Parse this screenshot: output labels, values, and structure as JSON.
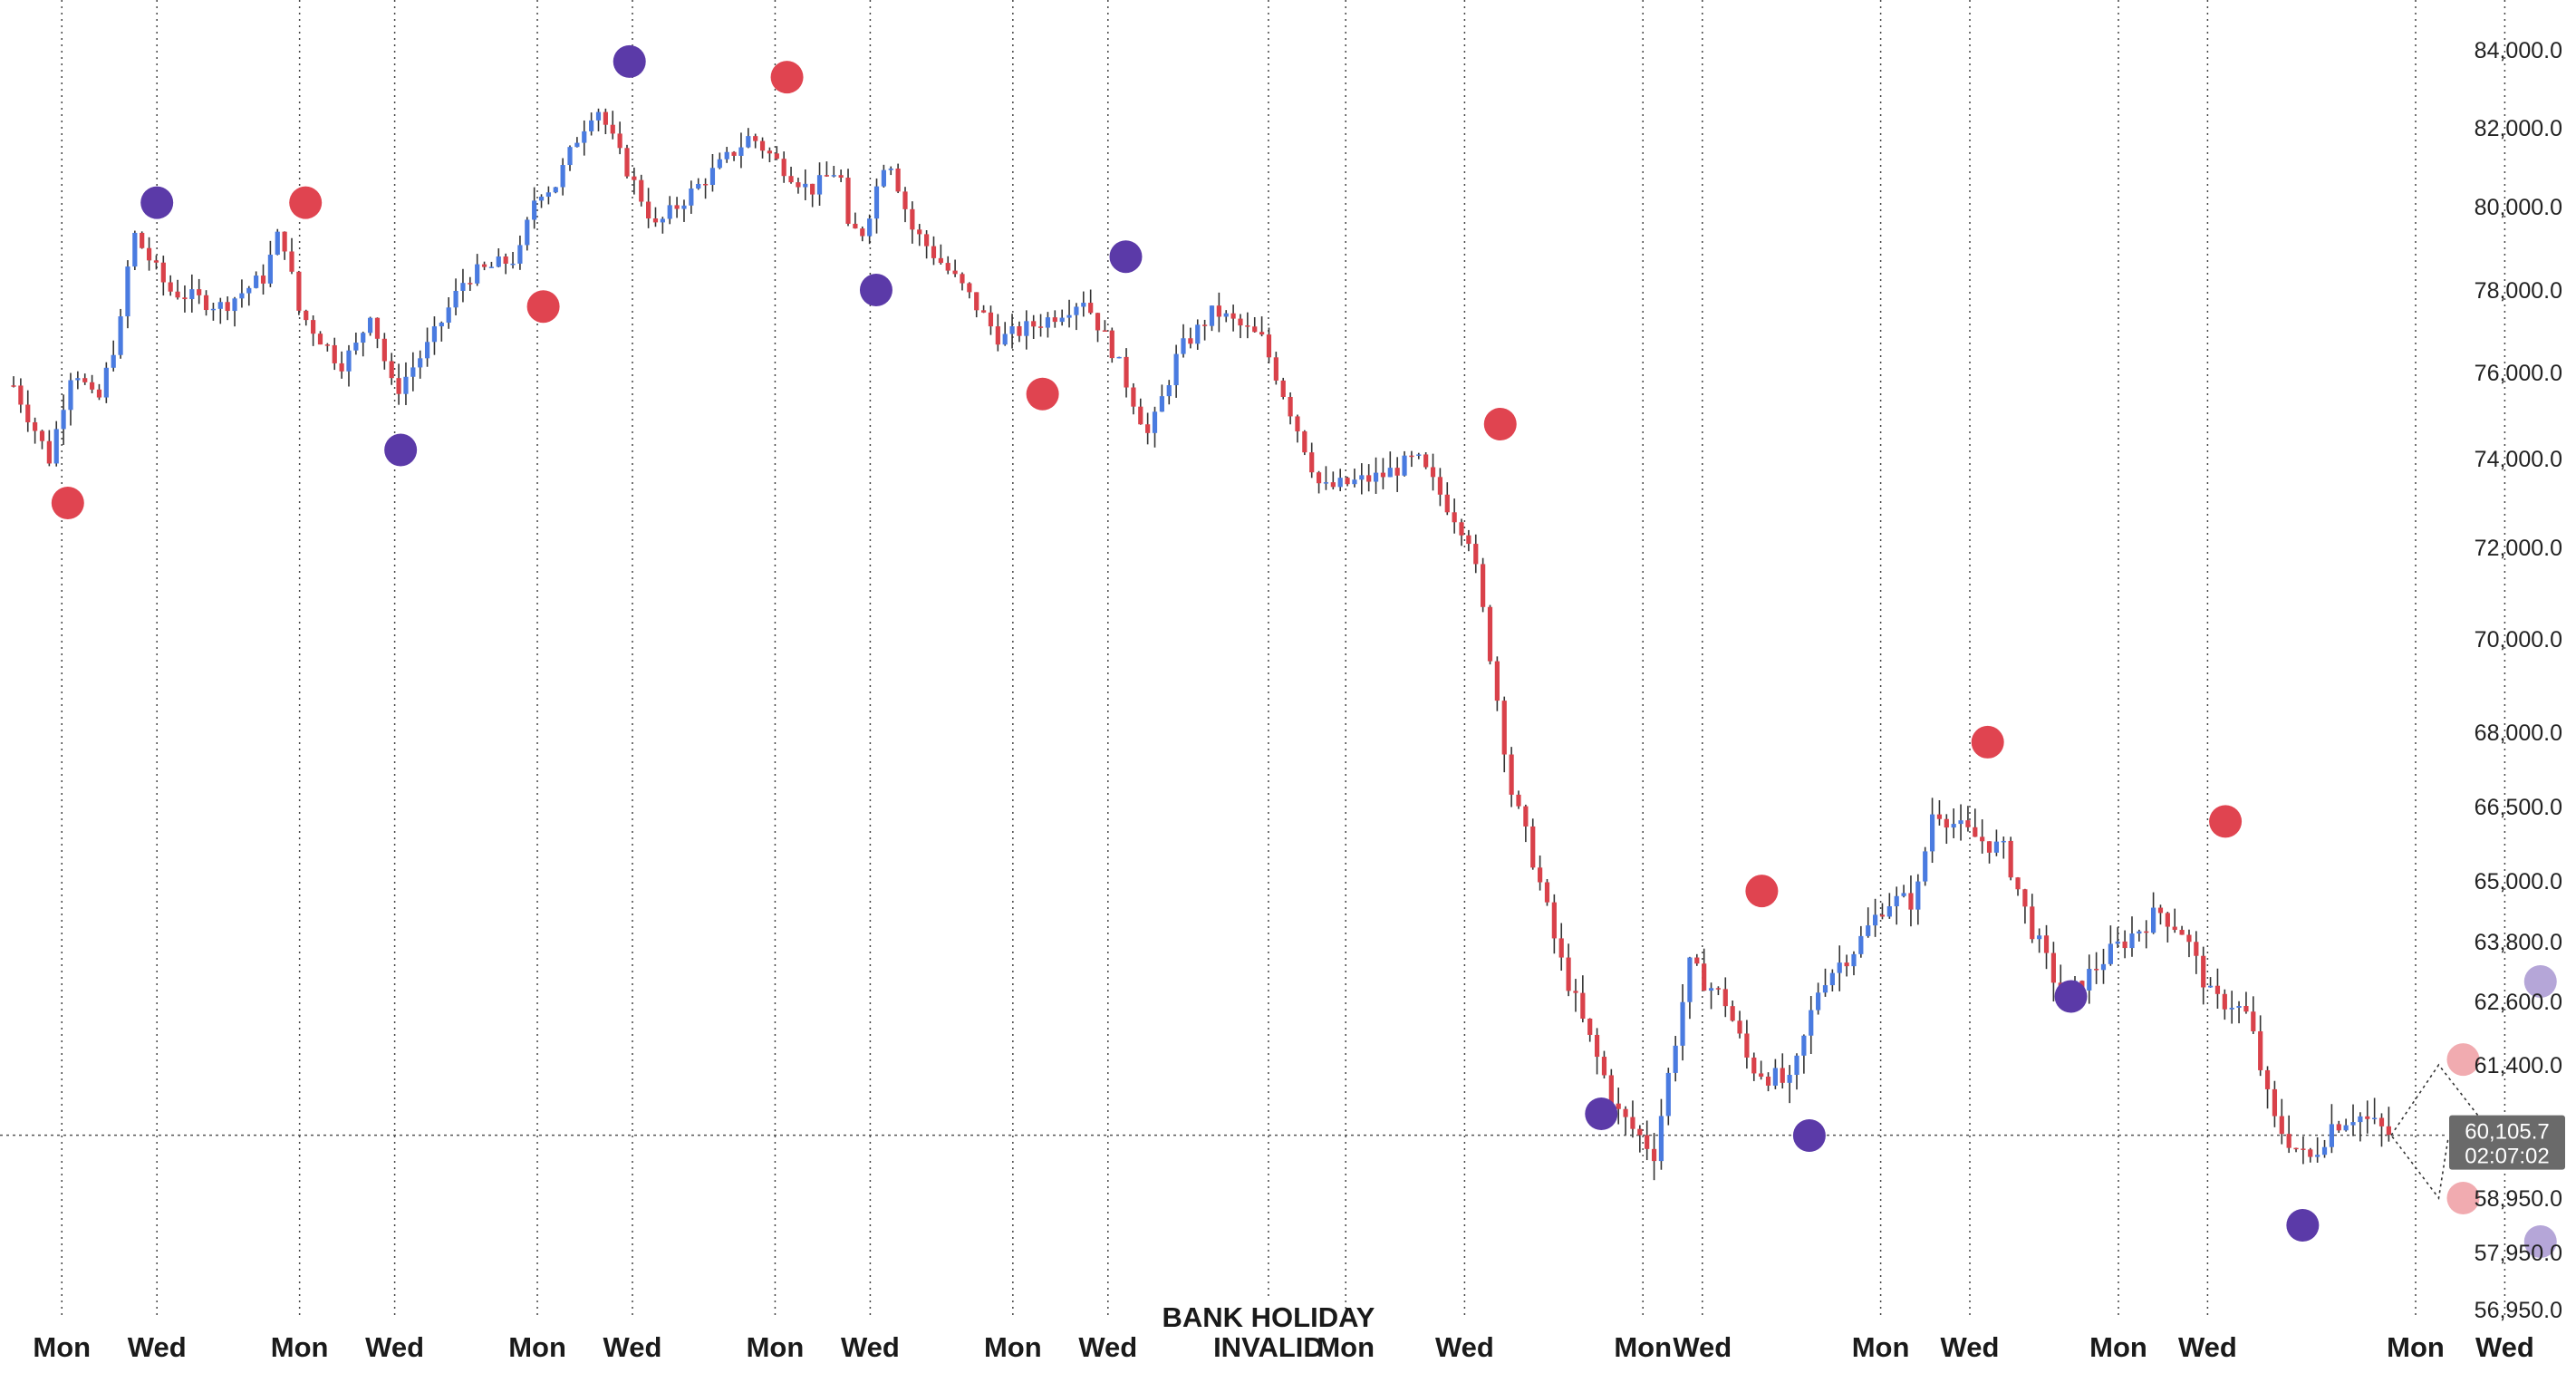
{
  "chart_data": {
    "type": "candlestick",
    "y_ticks": [
      "84,000.0",
      "82,000.0",
      "80,000.0",
      "78,000.0",
      "76,000.0",
      "74,000.0",
      "72,000.0",
      "70,000.0",
      "68,000.0",
      "66,500.0",
      "65,000.0",
      "63,800.0",
      "62,600.0",
      "61,400.0",
      "58,950.0",
      "57,950.0",
      "56,950.0"
    ],
    "x_labels": [
      "Mon",
      "Wed",
      "Mon",
      "Wed",
      "Mon",
      "Wed",
      "Mon",
      "Wed",
      "Mon",
      "Wed",
      "Mon",
      "Wed",
      "Mon",
      "Wed",
      "Mon",
      "Wed",
      "Mon",
      "Wed",
      "Mon",
      "Wed"
    ],
    "x_label_slots": [
      0.4,
      2,
      4.4,
      6,
      8.4,
      10,
      12.4,
      14,
      16.4,
      18,
      22,
      24,
      27,
      28,
      31,
      32.5,
      35,
      36.5,
      40,
      41.5
    ],
    "annotation": [
      "BANK HOLIDAY",
      "INVALID"
    ],
    "annotation_slot": 20.7,
    "current_price": "60,105.7",
    "countdown": "02:07:02",
    "current_value": 60105.7,
    "colors": {
      "up": "#4a7be0",
      "down": "#d9414a",
      "wick": "#333333",
      "purple": "#5b3aa8",
      "red": "#e04450"
    },
    "price_path": [
      [
        0,
        75700
      ],
      [
        0.6,
        74000
      ],
      [
        1,
        76200
      ],
      [
        1.4,
        75200
      ],
      [
        1.8,
        77200
      ],
      [
        2,
        79400
      ],
      [
        2.6,
        78000
      ],
      [
        3.5,
        77600
      ],
      [
        4.2,
        78300
      ],
      [
        4.5,
        79500
      ],
      [
        4.8,
        77500
      ],
      [
        5.5,
        76200
      ],
      [
        5.8,
        76700
      ],
      [
        6,
        77500
      ],
      [
        6.4,
        75500
      ],
      [
        7,
        76700
      ],
      [
        7.6,
        78300
      ],
      [
        8.5,
        78800
      ],
      [
        8.8,
        80400
      ],
      [
        9.1,
        80500
      ],
      [
        9.5,
        81800
      ],
      [
        9.8,
        82600
      ],
      [
        10.2,
        81300
      ],
      [
        10.8,
        79500
      ],
      [
        11.5,
        80500
      ],
      [
        12.4,
        81800
      ],
      [
        12.8,
        81200
      ],
      [
        13.4,
        80400
      ],
      [
        13.9,
        81000
      ],
      [
        14,
        79400
      ],
      [
        14.3,
        79400
      ],
      [
        14.7,
        81400
      ],
      [
        15.1,
        79500
      ],
      [
        16,
        78000
      ],
      [
        16.6,
        76800
      ],
      [
        17.4,
        77300
      ],
      [
        18,
        77800
      ],
      [
        18.5,
        76500
      ],
      [
        19.1,
        74500
      ],
      [
        19.6,
        76500
      ],
      [
        20.2,
        77500
      ],
      [
        21,
        76800
      ],
      [
        22,
        73300
      ],
      [
        23,
        73600
      ],
      [
        23.6,
        74000
      ],
      [
        24.5,
        72200
      ],
      [
        24.8,
        70000
      ],
      [
        25.2,
        66800
      ],
      [
        25.6,
        65300
      ],
      [
        26,
        63500
      ],
      [
        26.4,
        62200
      ],
      [
        27,
        60500
      ],
      [
        27.6,
        59800
      ],
      [
        28.2,
        63300
      ],
      [
        28.8,
        62600
      ],
      [
        29.2,
        61400
      ],
      [
        29.9,
        61000
      ],
      [
        30.4,
        63000
      ],
      [
        31,
        63700
      ],
      [
        31.5,
        64600
      ],
      [
        32,
        64600
      ],
      [
        32.3,
        66500
      ],
      [
        32.8,
        66000
      ],
      [
        33.5,
        65600
      ],
      [
        33.9,
        64200
      ],
      [
        34.5,
        62600
      ],
      [
        35.2,
        63500
      ],
      [
        35.8,
        64100
      ],
      [
        36.1,
        64400
      ],
      [
        36.5,
        64000
      ],
      [
        37,
        62600
      ],
      [
        37.3,
        62600
      ],
      [
        37.6,
        62300
      ],
      [
        38,
        60400
      ],
      [
        38.6,
        59600
      ],
      [
        39,
        60300
      ],
      [
        39.4,
        60500
      ],
      [
        40,
        60100
      ]
    ],
    "forecast": {
      "value_max": 61400,
      "value_min": 58950
    },
    "pivots": [
      {
        "slot": 0.5,
        "value": 73000,
        "color": "red"
      },
      {
        "slot": 2,
        "value": 80100,
        "color": "purple"
      },
      {
        "slot": 4.5,
        "value": 80100,
        "color": "red"
      },
      {
        "slot": 6.1,
        "value": 74200,
        "color": "purple"
      },
      {
        "slot": 8.5,
        "value": 77600,
        "color": "red"
      },
      {
        "slot": 9.95,
        "value": 83700,
        "color": "purple"
      },
      {
        "slot": 12.6,
        "value": 83300,
        "color": "red"
      },
      {
        "slot": 14.1,
        "value": 78000,
        "color": "purple"
      },
      {
        "slot": 16.9,
        "value": 75500,
        "color": "red"
      },
      {
        "slot": 18.3,
        "value": 78800,
        "color": "purple"
      },
      {
        "slot": 24.6,
        "value": 74800,
        "color": "red"
      },
      {
        "slot": 26.3,
        "value": 60500,
        "color": "purple"
      },
      {
        "slot": 29,
        "value": 64800,
        "color": "red"
      },
      {
        "slot": 29.8,
        "value": 60100,
        "color": "purple"
      },
      {
        "slot": 32.8,
        "value": 67800,
        "color": "red"
      },
      {
        "slot": 34.2,
        "value": 62700,
        "color": "purple"
      },
      {
        "slot": 36.8,
        "value": 66200,
        "color": "red"
      },
      {
        "slot": 38.1,
        "value": 58450,
        "color": "purple"
      },
      {
        "slot": 40.8,
        "value": 61500,
        "color": "red",
        "faded": true
      },
      {
        "slot": 40.8,
        "value": 58950,
        "color": "red",
        "faded": true
      },
      {
        "slot": 42.1,
        "value": 63000,
        "color": "purple",
        "faded": true
      },
      {
        "slot": 42.1,
        "value": 58150,
        "color": "purple",
        "faded": true
      }
    ]
  }
}
